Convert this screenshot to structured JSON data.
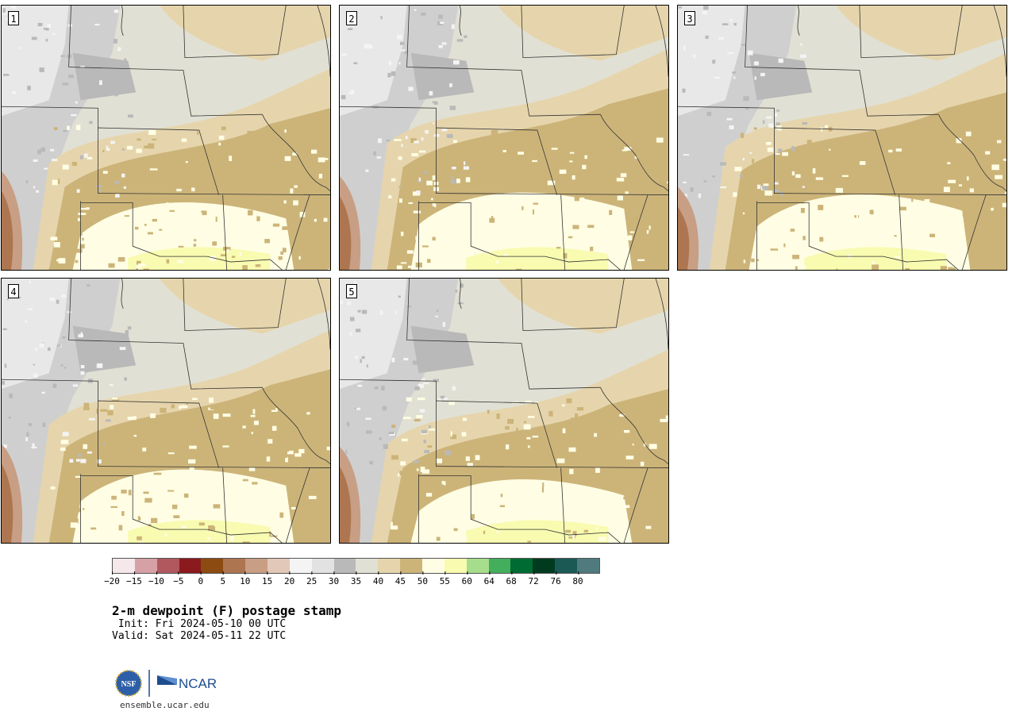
{
  "panels": [
    {
      "label": "1"
    },
    {
      "label": "2"
    },
    {
      "label": "3"
    },
    {
      "label": "4"
    },
    {
      "label": "5"
    }
  ],
  "colorbar": {
    "colors": [
      "#f5e7ea",
      "#d5a0a6",
      "#b0585e",
      "#8b1a1e",
      "#8c4b11",
      "#ad7650",
      "#c89e84",
      "#e2c8b8",
      "#f4f4f4",
      "#e2e2e2",
      "#b9b9b9",
      "#e1e0d4",
      "#e6d5ac",
      "#ccb479",
      "#fffee4",
      "#f8fbb0",
      "#a6dd8c",
      "#43ae5c",
      "#006c33",
      "#003b20",
      "#1b5955",
      "#4f7a7e"
    ],
    "ticks": [
      "−20",
      "−15",
      "−10",
      "−5",
      "0",
      "5",
      "10",
      "15",
      "20",
      "25",
      "30",
      "35",
      "40",
      "45",
      "50",
      "55",
      "60",
      "64",
      "68",
      "72",
      "76",
      "80"
    ]
  },
  "title": "2-m dewpoint (F) postage stamp",
  "init": " Init: Fri 2024-05-10 00 UTC",
  "valid": "Valid: Sat 2024-05-11 22 UTC",
  "logo": {
    "nsf": "NSF",
    "ncar": "NCAR"
  },
  "url": "ensemble.ucar.edu"
}
